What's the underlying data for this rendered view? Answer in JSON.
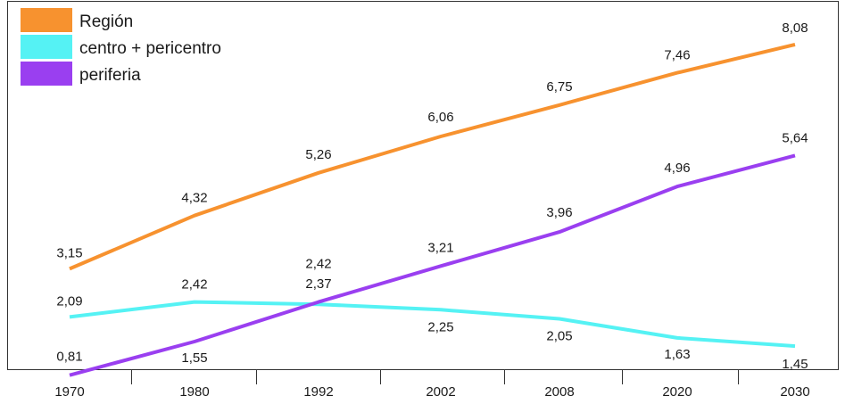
{
  "chart_data": {
    "type": "line",
    "categories": [
      "1970",
      "1980",
      "1992",
      "2002",
      "2008",
      "2020",
      "2030"
    ],
    "ylim": [
      0,
      9
    ],
    "legend_position": "top-left",
    "grid": false,
    "series": [
      {
        "name": "Región",
        "color": "#f7922f",
        "values": [
          3.15,
          4.32,
          5.26,
          6.06,
          6.75,
          7.46,
          8.08
        ],
        "labels": [
          "3,15",
          "4,32",
          "5,26",
          "6,06",
          "6,75",
          "7,46",
          "8,08"
        ]
      },
      {
        "name": "centro + pericentro",
        "color": "#55f2f4",
        "values": [
          2.09,
          2.42,
          2.37,
          2.25,
          2.05,
          1.63,
          1.45
        ],
        "labels": [
          "2,09",
          "2,42",
          "2,37",
          "2,25",
          "2,05",
          "1,63",
          "1,45"
        ]
      },
      {
        "name": "periferia",
        "color": "#9a3ff0",
        "values": [
          0.81,
          1.55,
          2.42,
          3.21,
          3.96,
          4.96,
          5.64
        ],
        "labels": [
          "0,81",
          "1,55",
          "2,42",
          "3,21",
          "3,96",
          "4,96",
          "5,64"
        ]
      }
    ]
  }
}
